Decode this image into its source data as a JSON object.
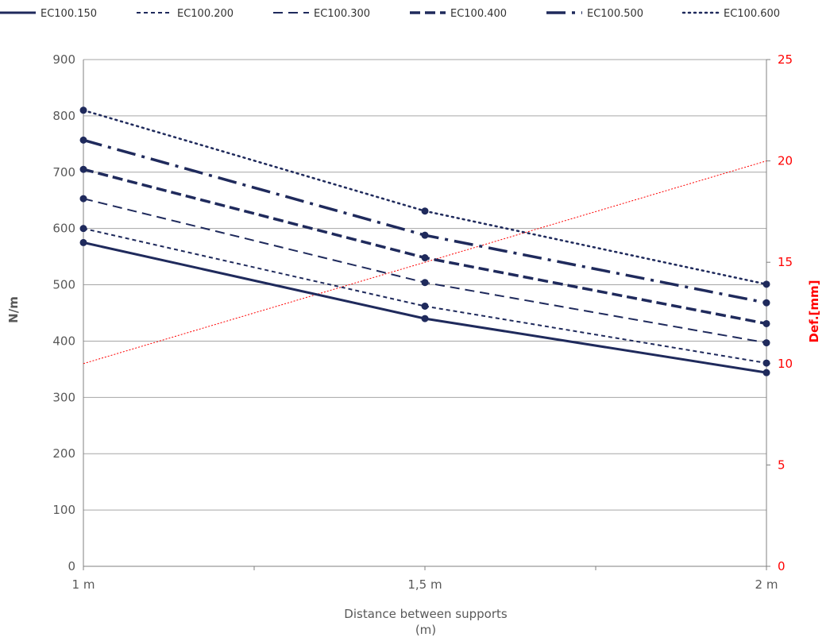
{
  "chart_data": {
    "type": "line",
    "x": [
      "1 m",
      "1,5 m",
      "2 m"
    ],
    "xlabel": "Distance between supports",
    "xlabel_unit": "(m)",
    "ylabel": "N/m",
    "ylim": [
      0,
      900
    ],
    "y_ticks": [
      "0",
      "100",
      "200",
      "300",
      "400",
      "500",
      "600",
      "700",
      "800",
      "900"
    ],
    "y2label": "Def.[mm]",
    "y2lim": [
      0,
      25
    ],
    "y2_ticks": [
      "0",
      "5",
      "10",
      "15",
      "20",
      "25"
    ],
    "grid": true,
    "legend_position": "top",
    "series": [
      {
        "name": "EC100.150",
        "values": [
          575,
          440,
          344
        ],
        "style": "solid",
        "width": 3
      },
      {
        "name": "EC100.200",
        "values": [
          600,
          462,
          361
        ],
        "style": "dotdash",
        "width": 2
      },
      {
        "name": "EC100.300",
        "values": [
          653,
          504,
          397
        ],
        "style": "dash",
        "width": 2
      },
      {
        "name": "EC100.400",
        "values": [
          705,
          548,
          431
        ],
        "style": "heavydash",
        "width": 3.5
      },
      {
        "name": "EC100.500",
        "values": [
          757,
          588,
          468
        ],
        "style": "longdashdot",
        "width": 3.5
      },
      {
        "name": "EC100.600",
        "values": [
          810,
          631,
          501
        ],
        "style": "dot",
        "width": 2.5
      }
    ],
    "deflection_series": {
      "axis": "right",
      "values": [
        10,
        null,
        20
      ],
      "color": "#ff0000"
    },
    "colors": {
      "series": "#1f2a5c",
      "secondary_axis": "#ff0000",
      "grid": "#a6a6a6",
      "text": "#595959"
    }
  }
}
